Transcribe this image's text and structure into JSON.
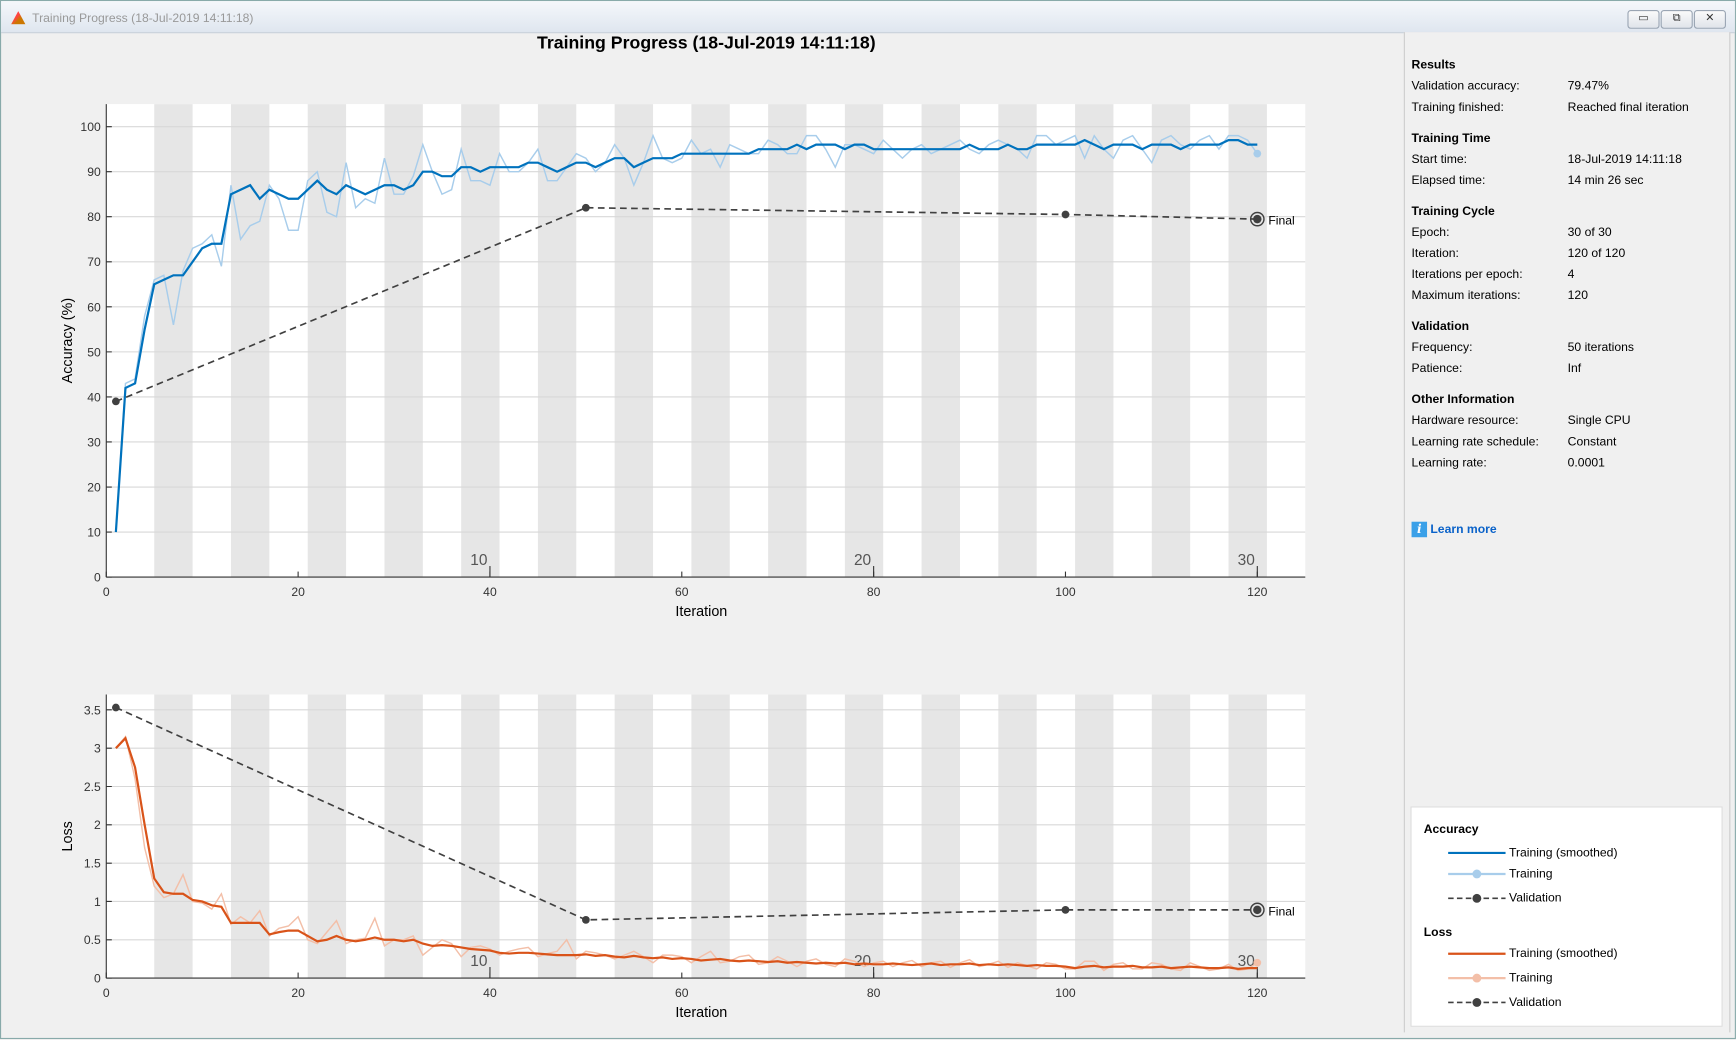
{
  "window": {
    "title": "Training Progress (18-Jul-2019 14:11:18)",
    "buttons": [
      "minimize",
      "restore",
      "close"
    ]
  },
  "main_title": "Training Progress (18-Jul-2019 14:11:18)",
  "colors": {
    "acc_smoothed": "#0072BD",
    "acc_raw": "#A8CDEB",
    "loss_smoothed": "#D95319",
    "loss_raw": "#F3BFA8",
    "validation": "#404040",
    "epoch_band": "#E6E6E6"
  },
  "panel": {
    "sections": [
      {
        "title": "Results",
        "rows": [
          [
            "Validation accuracy:",
            "79.47%"
          ],
          [
            "Training finished:",
            "Reached final iteration"
          ]
        ]
      },
      {
        "title": "Training Time",
        "rows": [
          [
            "Start time:",
            "18-Jul-2019 14:11:18"
          ],
          [
            "Elapsed time:",
            "14 min 26 sec"
          ]
        ]
      },
      {
        "title": "Training Cycle",
        "rows": [
          [
            "Epoch:",
            "30 of 30"
          ],
          [
            "Iteration:",
            "120 of 120"
          ],
          [
            "Iterations per epoch:",
            "4"
          ],
          [
            "Maximum iterations:",
            "120"
          ]
        ]
      },
      {
        "title": "Validation",
        "rows": [
          [
            "Frequency:",
            "50 iterations"
          ],
          [
            "Patience:",
            "Inf"
          ]
        ]
      },
      {
        "title": "Other Information",
        "rows": [
          [
            "Hardware resource:",
            "Single CPU"
          ],
          [
            "Learning rate schedule:",
            "Constant"
          ],
          [
            "Learning rate:",
            "0.0001"
          ]
        ]
      }
    ],
    "learn_more": "Learn more",
    "legend": {
      "accuracy_title": "Accuracy",
      "loss_title": "Loss",
      "training_smoothed": "Training (smoothed)",
      "training": "Training",
      "validation": "Validation"
    }
  },
  "chart_data": [
    {
      "type": "line",
      "ylabel": "Accuracy (%)",
      "xlabel": "Iteration",
      "xlim": [
        0,
        125
      ],
      "ylim": [
        0,
        105
      ],
      "xticks": [
        0,
        20,
        40,
        60,
        80,
        100,
        120
      ],
      "yticks": [
        0,
        10,
        20,
        30,
        40,
        50,
        60,
        70,
        80,
        90,
        100
      ],
      "epoch_labels": [
        {
          "epoch": "10",
          "iteration": 40
        },
        {
          "epoch": "20",
          "iteration": 80
        },
        {
          "epoch": "30",
          "iteration": 120
        }
      ],
      "iterations_per_epoch": 4,
      "epochs": 30,
      "grid": "horizontal",
      "final_label": "Final",
      "series": [
        {
          "key": "smoothed",
          "values": [
            10,
            42,
            43,
            55,
            65,
            66,
            67,
            67,
            70,
            73,
            74,
            74,
            85,
            86,
            87,
            84,
            86,
            85,
            84,
            84,
            86,
            88,
            86,
            85,
            87,
            86,
            85,
            86,
            87,
            87,
            86,
            87,
            90,
            90,
            89,
            89,
            91,
            91,
            90,
            91,
            91,
            91,
            91,
            92,
            92,
            91,
            90,
            91,
            92,
            92,
            91,
            92,
            93,
            93,
            91,
            92,
            93,
            93,
            93,
            94,
            94,
            94,
            94,
            94,
            94,
            94,
            94,
            95,
            95,
            95,
            95,
            96,
            95,
            96,
            96,
            96,
            95,
            96,
            96,
            95,
            95,
            95,
            95,
            95,
            95,
            95,
            95,
            95,
            95,
            96,
            95,
            95,
            95,
            96,
            95,
            95,
            96,
            96,
            96,
            96,
            96,
            97,
            96,
            95,
            96,
            96,
            96,
            95,
            96,
            96,
            96,
            95,
            96,
            96,
            96,
            96,
            97,
            97,
            96,
            96
          ]
        },
        {
          "key": "raw",
          "values": [
            10,
            43,
            44,
            58,
            66,
            67,
            56,
            68,
            73,
            74,
            76,
            69,
            87,
            75,
            78,
            79,
            87,
            84,
            77,
            77,
            88,
            90,
            81,
            80,
            92,
            82,
            84,
            83,
            93,
            85,
            85,
            89,
            96,
            90,
            85,
            86,
            95,
            88,
            88,
            87,
            94,
            90,
            90,
            92,
            95,
            88,
            88,
            91,
            94,
            93,
            90,
            92,
            96,
            93,
            87,
            92,
            98,
            93,
            92,
            93,
            97,
            94,
            95,
            91,
            96,
            95,
            94,
            94,
            97,
            96,
            94,
            94,
            98,
            98,
            95,
            91,
            96,
            96,
            95,
            94,
            97,
            95,
            93,
            95,
            96,
            94,
            95,
            96,
            97,
            95,
            94,
            96,
            97,
            96,
            95,
            93,
            98,
            98,
            96,
            97,
            98,
            93,
            98,
            95,
            93,
            97,
            98,
            95,
            92,
            97,
            98,
            96,
            95,
            97,
            98,
            95,
            98,
            98,
            97,
            94
          ]
        },
        {
          "key": "validation",
          "points": [
            [
              1,
              39
            ],
            [
              50,
              82
            ],
            [
              100,
              80.5
            ],
            [
              120,
              79.47
            ]
          ]
        }
      ]
    },
    {
      "type": "line",
      "ylabel": "Loss",
      "xlabel": "Iteration",
      "xlim": [
        0,
        125
      ],
      "ylim": [
        0,
        3.7
      ],
      "xticks": [
        0,
        20,
        40,
        60,
        80,
        100,
        120
      ],
      "yticks": [
        0,
        0.5,
        1,
        1.5,
        2,
        2.5,
        3,
        3.5
      ],
      "epoch_labels": [
        {
          "epoch": "10",
          "iteration": 40
        },
        {
          "epoch": "20",
          "iteration": 80
        },
        {
          "epoch": "30",
          "iteration": 120
        }
      ],
      "iterations_per_epoch": 4,
      "epochs": 30,
      "grid": "horizontal",
      "final_label": "Final",
      "series": [
        {
          "key": "smoothed",
          "values": [
            3.0,
            3.13,
            2.75,
            2.0,
            1.3,
            1.12,
            1.1,
            1.1,
            1.02,
            1.0,
            0.95,
            0.93,
            0.72,
            0.72,
            0.72,
            0.72,
            0.57,
            0.6,
            0.62,
            0.62,
            0.55,
            0.48,
            0.5,
            0.55,
            0.5,
            0.48,
            0.5,
            0.53,
            0.5,
            0.5,
            0.48,
            0.5,
            0.45,
            0.42,
            0.43,
            0.42,
            0.4,
            0.38,
            0.37,
            0.36,
            0.33,
            0.32,
            0.33,
            0.33,
            0.32,
            0.31,
            0.3,
            0.3,
            0.3,
            0.31,
            0.29,
            0.3,
            0.28,
            0.27,
            0.29,
            0.27,
            0.26,
            0.27,
            0.25,
            0.26,
            0.25,
            0.23,
            0.24,
            0.25,
            0.23,
            0.22,
            0.23,
            0.22,
            0.21,
            0.22,
            0.2,
            0.21,
            0.2,
            0.19,
            0.2,
            0.19,
            0.2,
            0.18,
            0.19,
            0.18,
            0.18,
            0.19,
            0.18,
            0.17,
            0.18,
            0.19,
            0.17,
            0.18,
            0.18,
            0.19,
            0.17,
            0.18,
            0.17,
            0.18,
            0.17,
            0.16,
            0.17,
            0.16,
            0.16,
            0.15,
            0.13,
            0.15,
            0.16,
            0.14,
            0.15,
            0.15,
            0.16,
            0.14,
            0.14,
            0.15,
            0.13,
            0.14,
            0.15,
            0.14,
            0.13,
            0.13,
            0.14,
            0.12,
            0.13,
            0.13
          ]
        },
        {
          "key": "raw",
          "values": [
            3.0,
            3.15,
            2.6,
            1.7,
            1.2,
            1.05,
            1.1,
            1.35,
            1.0,
            0.98,
            0.9,
            1.1,
            0.7,
            0.8,
            0.72,
            0.88,
            0.55,
            0.65,
            0.68,
            0.8,
            0.5,
            0.45,
            0.6,
            0.75,
            0.45,
            0.5,
            0.52,
            0.78,
            0.42,
            0.5,
            0.5,
            0.55,
            0.3,
            0.4,
            0.5,
            0.45,
            0.28,
            0.4,
            0.42,
            0.38,
            0.3,
            0.35,
            0.38,
            0.4,
            0.28,
            0.32,
            0.35,
            0.5,
            0.25,
            0.35,
            0.33,
            0.3,
            0.25,
            0.3,
            0.35,
            0.28,
            0.2,
            0.3,
            0.3,
            0.28,
            0.2,
            0.28,
            0.35,
            0.2,
            0.22,
            0.28,
            0.3,
            0.18,
            0.2,
            0.28,
            0.22,
            0.15,
            0.22,
            0.25,
            0.18,
            0.15,
            0.25,
            0.22,
            0.15,
            0.2,
            0.22,
            0.15,
            0.2,
            0.23,
            0.15,
            0.2,
            0.22,
            0.14,
            0.2,
            0.24,
            0.15,
            0.18,
            0.22,
            0.14,
            0.2,
            0.16,
            0.12,
            0.2,
            0.18,
            0.12,
            0.12,
            0.22,
            0.22,
            0.1,
            0.18,
            0.2,
            0.12,
            0.12,
            0.2,
            0.18,
            0.12,
            0.1,
            0.2,
            0.15,
            0.1,
            0.12,
            0.18,
            0.1,
            0.12,
            0.2
          ]
        },
        {
          "key": "validation",
          "points": [
            [
              1,
              3.53
            ],
            [
              50,
              0.76
            ],
            [
              100,
              0.89
            ],
            [
              120,
              0.89
            ]
          ]
        }
      ]
    }
  ]
}
